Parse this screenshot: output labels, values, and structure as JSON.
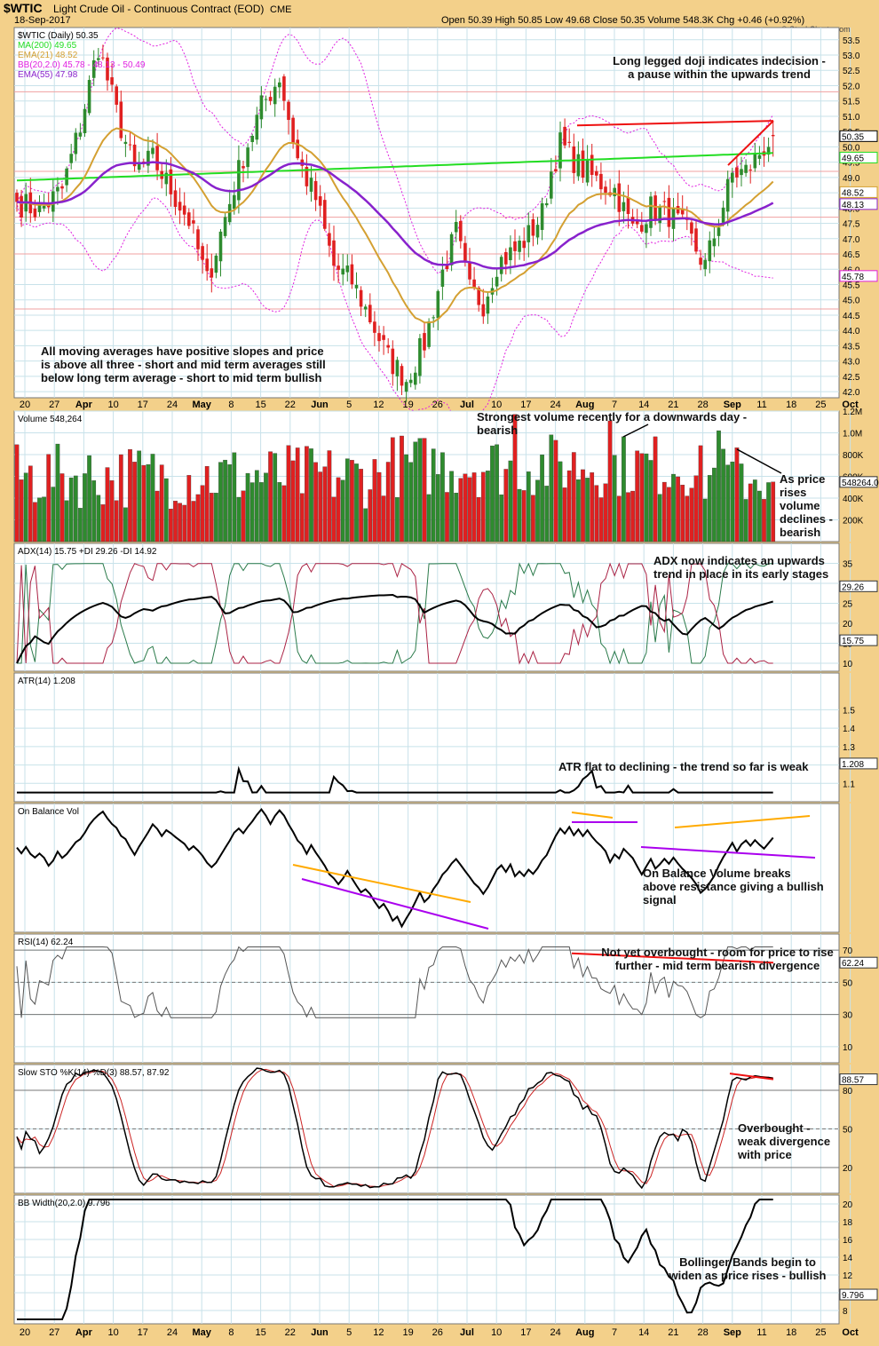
{
  "header": {
    "symbol": "$WTIC",
    "title": "Light Crude Oil - Continuous Contract (EOD)",
    "exchange": "CME",
    "date": "18-Sep-2017",
    "ohlc": "Open 50.39  High 50.85  Low 49.68  Close 50.35  Volume 548.3K  Chg +0.46 (+0.92%)",
    "watermark": "© StockCharts.com"
  },
  "colors": {
    "background": "#f3d08a",
    "panel": "#ffffff",
    "up": "#2e8b2e",
    "down": "#e02020",
    "ma200": "#22dd22",
    "ema21": "#d4a032",
    "ema55": "#8822cc",
    "bb": "#e020e0",
    "grid": "#c8e2ea",
    "annotation_red": "#ee1111",
    "annotation_orange": "#ffaa00",
    "annotation_purple": "#aa00ee"
  },
  "x_axis": {
    "labels": [
      "20",
      "27",
      "Apr",
      "10",
      "17",
      "24",
      "May",
      "8",
      "15",
      "22",
      "Jun",
      "5",
      "12",
      "19",
      "26",
      "Jul",
      "10",
      "17",
      "24",
      "Aug",
      "7",
      "14",
      "21",
      "28",
      "Sep",
      "11",
      "18",
      "25",
      "Oct"
    ]
  },
  "chart_data": [
    {
      "type": "candlestick",
      "legend": [
        "$WTIC (Daily) 50.35",
        "MA(200) 49.65",
        "EMA(21) 48.52",
        "BB(20,2.0) 45.78 - 48.13 - 50.49",
        "EMA(55) 47.98"
      ],
      "ylim": [
        41.8,
        53.9
      ],
      "yticks": [
        "53.5",
        "53.0",
        "52.5",
        "52.0",
        "51.5",
        "51.0",
        "50.5",
        "50.0",
        "49.5",
        "49.0",
        "48.5",
        "48.0",
        "47.5",
        "47.0",
        "46.5",
        "46.0",
        "45.5",
        "45.0",
        "44.5",
        "44.0",
        "43.5",
        "43.0",
        "42.5",
        "42.0"
      ],
      "value_labels": [
        "50.35",
        "49.65",
        "48.52",
        "48.13",
        "45.78"
      ],
      "close_anchors": [
        [
          0,
          48.2
        ],
        [
          5,
          47.9
        ],
        [
          10,
          48.6
        ],
        [
          14,
          50.7
        ],
        [
          18,
          53.3
        ],
        [
          22,
          51.1
        ],
        [
          26,
          49.2
        ],
        [
          30,
          49.6
        ],
        [
          34,
          48.6
        ],
        [
          38,
          47.6
        ],
        [
          42,
          45.6
        ],
        [
          46,
          47.7
        ],
        [
          50,
          49.7
        ],
        [
          54,
          51.3
        ],
        [
          58,
          52.3
        ],
        [
          62,
          49.6
        ],
        [
          66,
          48.3
        ],
        [
          70,
          46.1
        ],
        [
          74,
          45.6
        ],
        [
          78,
          44.4
        ],
        [
          82,
          43.1
        ],
        [
          86,
          42.4
        ],
        [
          90,
          43.6
        ],
        [
          94,
          45.9
        ],
        [
          97,
          47.2
        ],
        [
          100,
          45.3
        ],
        [
          103,
          44.9
        ],
        [
          106,
          46.2
        ],
        [
          110,
          46.6
        ],
        [
          113,
          47.1
        ],
        [
          116,
          47.8
        ],
        [
          118,
          49.2
        ],
        [
          120,
          50.1
        ],
        [
          124,
          49.4
        ],
        [
          128,
          48.9
        ],
        [
          132,
          48.6
        ],
        [
          136,
          47.3
        ],
        [
          140,
          48.0
        ],
        [
          144,
          47.8
        ],
        [
          148,
          47.2
        ],
        [
          152,
          46.1
        ],
        [
          155,
          47.6
        ],
        [
          158,
          49.1
        ],
        [
          161,
          49.2
        ],
        [
          164,
          49.8
        ],
        [
          167,
          50.35
        ]
      ],
      "annotations": [
        "Long legged doji indicates indecision -",
        "a pause within the upwards trend",
        "All moving averages have positive slopes and price",
        "is above all three - short and mid term averages still",
        "below long term average - short to mid term bullish"
      ]
    },
    {
      "type": "bar",
      "legend": "Volume 548,264",
      "ylim": [
        0,
        1200000
      ],
      "yticks": [
        "1.2M",
        "1.0M",
        "800K",
        "600K",
        "400K",
        "200K"
      ],
      "value_label": "548264.0",
      "annotations": [
        "Strongest volume recently for a downwards day -",
        "bearish",
        "As price",
        "rises",
        "volume",
        "declines -",
        "bearish"
      ]
    },
    {
      "type": "line",
      "legend": "ADX(14) 15.75  +DI 29.26  -DI 14.92",
      "ylim": [
        8,
        40
      ],
      "yticks": [
        "35",
        "30",
        "25",
        "20",
        "15",
        "10"
      ],
      "value_labels": [
        "29.26",
        "15.75"
      ],
      "annotations": [
        "ADX now indicates an upwards",
        "trend in place in its early stages"
      ]
    },
    {
      "type": "line",
      "legend": "ATR(14) 1.208",
      "ylim": [
        1.0,
        1.7
      ],
      "yticks": [
        "1.5",
        "1.4",
        "1.3",
        "1.2",
        "1.1"
      ],
      "value_label": "1.208",
      "annotations": [
        "ATR flat to declining - the trend so far is weak"
      ]
    },
    {
      "type": "line",
      "legend": "On Balance Vol",
      "annotations": [
        "On Balance Volume breaks",
        "above resistance giving a bullish",
        "signal"
      ]
    },
    {
      "type": "line",
      "legend": "RSI(14) 62.24",
      "ylim": [
        0,
        80
      ],
      "yticks": [
        "70",
        "50",
        "30",
        "10"
      ],
      "value_label": "62.24",
      "annotations": [
        "Not yet overbought - room for price to rise",
        "further - mid term bearish divergence"
      ]
    },
    {
      "type": "line",
      "legend": "Slow STO %K(14) %D(3) 88.57, 87.92",
      "ylim": [
        0,
        100
      ],
      "yticks": [
        "80",
        "50",
        "20"
      ],
      "value_label": "88.57",
      "annotations": [
        "Overbought -",
        "weak divergence",
        "with price"
      ]
    },
    {
      "type": "line",
      "legend": "BB Width(20,2.0) 9.796",
      "ylim": [
        6.5,
        21
      ],
      "yticks": [
        "20",
        "18",
        "16",
        "14",
        "12",
        "10",
        "8"
      ],
      "value_label": "9.796",
      "annotations": [
        "Bollinger Bands begin to",
        "widen as price rises - bullish"
      ]
    }
  ]
}
